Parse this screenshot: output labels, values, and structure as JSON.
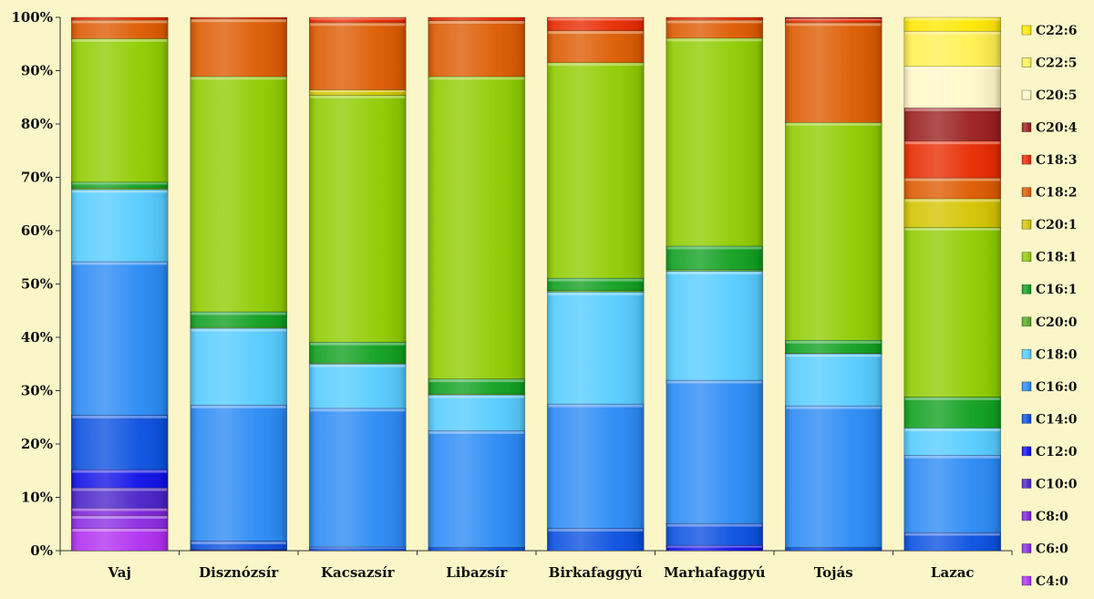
{
  "chart_data": {
    "type": "bar",
    "stacked": true,
    "percent": true,
    "title": "",
    "xlabel": "",
    "ylabel": "",
    "ylim": [
      0,
      100
    ],
    "yticks": [
      "0%",
      "10%",
      "20%",
      "30%",
      "40%",
      "50%",
      "60%",
      "70%",
      "80%",
      "90%",
      "100%"
    ],
    "grid": false,
    "legend_position": "right",
    "categories": [
      "Vaj",
      "Disznózsír",
      "Kacsazsír",
      "Libazsír",
      "Birkafaggyú",
      "Marhafaggyú",
      "Tojás",
      "Lazac"
    ],
    "series": [
      {
        "name": "C4:0",
        "color": "#B030F0",
        "values": [
          4.2,
          0,
          0,
          0,
          0,
          0,
          0,
          0
        ]
      },
      {
        "name": "C6:0",
        "color": "#8A2BE2",
        "values": [
          2.4,
          0,
          0,
          0,
          0,
          0,
          0,
          0
        ]
      },
      {
        "name": "C8:0",
        "color": "#7B22D8",
        "values": [
          1.4,
          0,
          0,
          0,
          0,
          0,
          0,
          0
        ]
      },
      {
        "name": "C10:0",
        "color": "#4A22C8",
        "values": [
          3.8,
          0.1,
          0,
          0,
          0,
          0,
          0,
          0
        ]
      },
      {
        "name": "C12:0",
        "color": "#1010E8",
        "values": [
          3.4,
          0.1,
          0,
          0,
          0,
          1,
          0,
          0
        ]
      },
      {
        "name": "C14:0",
        "color": "#0A50E0",
        "values": [
          10.2,
          1.6,
          0.7,
          0.6,
          4.2,
          4.1,
          0.6,
          3.4
        ]
      },
      {
        "name": "C16:0",
        "color": "#2A8AF5",
        "values": [
          28.8,
          25.5,
          26,
          21.9,
          23.3,
          26.8,
          26.4,
          14.5
        ]
      },
      {
        "name": "C18:0",
        "color": "#55CCFF",
        "values": [
          13.5,
          14.4,
          8.3,
          6.7,
          21,
          20.4,
          9.7,
          5.1
        ]
      },
      {
        "name": "C20:0",
        "color": "#55AA22",
        "values": [
          0.3,
          0.2,
          0.2,
          0.2,
          0.3,
          0.3,
          0.1,
          0
        ]
      },
      {
        "name": "C16:1",
        "color": "#10A020",
        "values": [
          1.1,
          2.9,
          3.9,
          2.8,
          2.3,
          4.4,
          2.4,
          5.8
        ]
      },
      {
        "name": "C18:1",
        "color": "#8FCC00",
        "values": [
          26.9,
          44.1,
          46.3,
          56.7,
          40.4,
          38.9,
          40.6,
          31.8
        ]
      },
      {
        "name": "C20:1",
        "color": "#D4C400",
        "values": [
          0,
          0,
          1,
          0,
          0,
          0,
          0,
          5.4
        ]
      },
      {
        "name": "C18:2",
        "color": "#DD5A00",
        "values": [
          3.5,
          10.8,
          12.6,
          10.5,
          6,
          3.4,
          18.6,
          3.9
        ]
      },
      {
        "name": "C18:3",
        "color": "#E82A00",
        "values": [
          0.5,
          0.3,
          1,
          0.6,
          2.5,
          0.5,
          0.8,
          6.9
        ]
      },
      {
        "name": "C20:4",
        "color": "#9A1E1E",
        "values": [
          0,
          0,
          0,
          0,
          0,
          0,
          0.2,
          6.2
        ]
      },
      {
        "name": "C20:5",
        "color": "#FFF8C8",
        "values": [
          0,
          0,
          0,
          0,
          0,
          0,
          0,
          7.8
        ]
      },
      {
        "name": "C22:5",
        "color": "#FFF050",
        "values": [
          0,
          0,
          0,
          0,
          0,
          0,
          0,
          6.6
        ]
      },
      {
        "name": "C22:6",
        "color": "#FFE800",
        "values": [
          0,
          0,
          0,
          0,
          0,
          0,
          0,
          2.6
        ]
      }
    ]
  }
}
